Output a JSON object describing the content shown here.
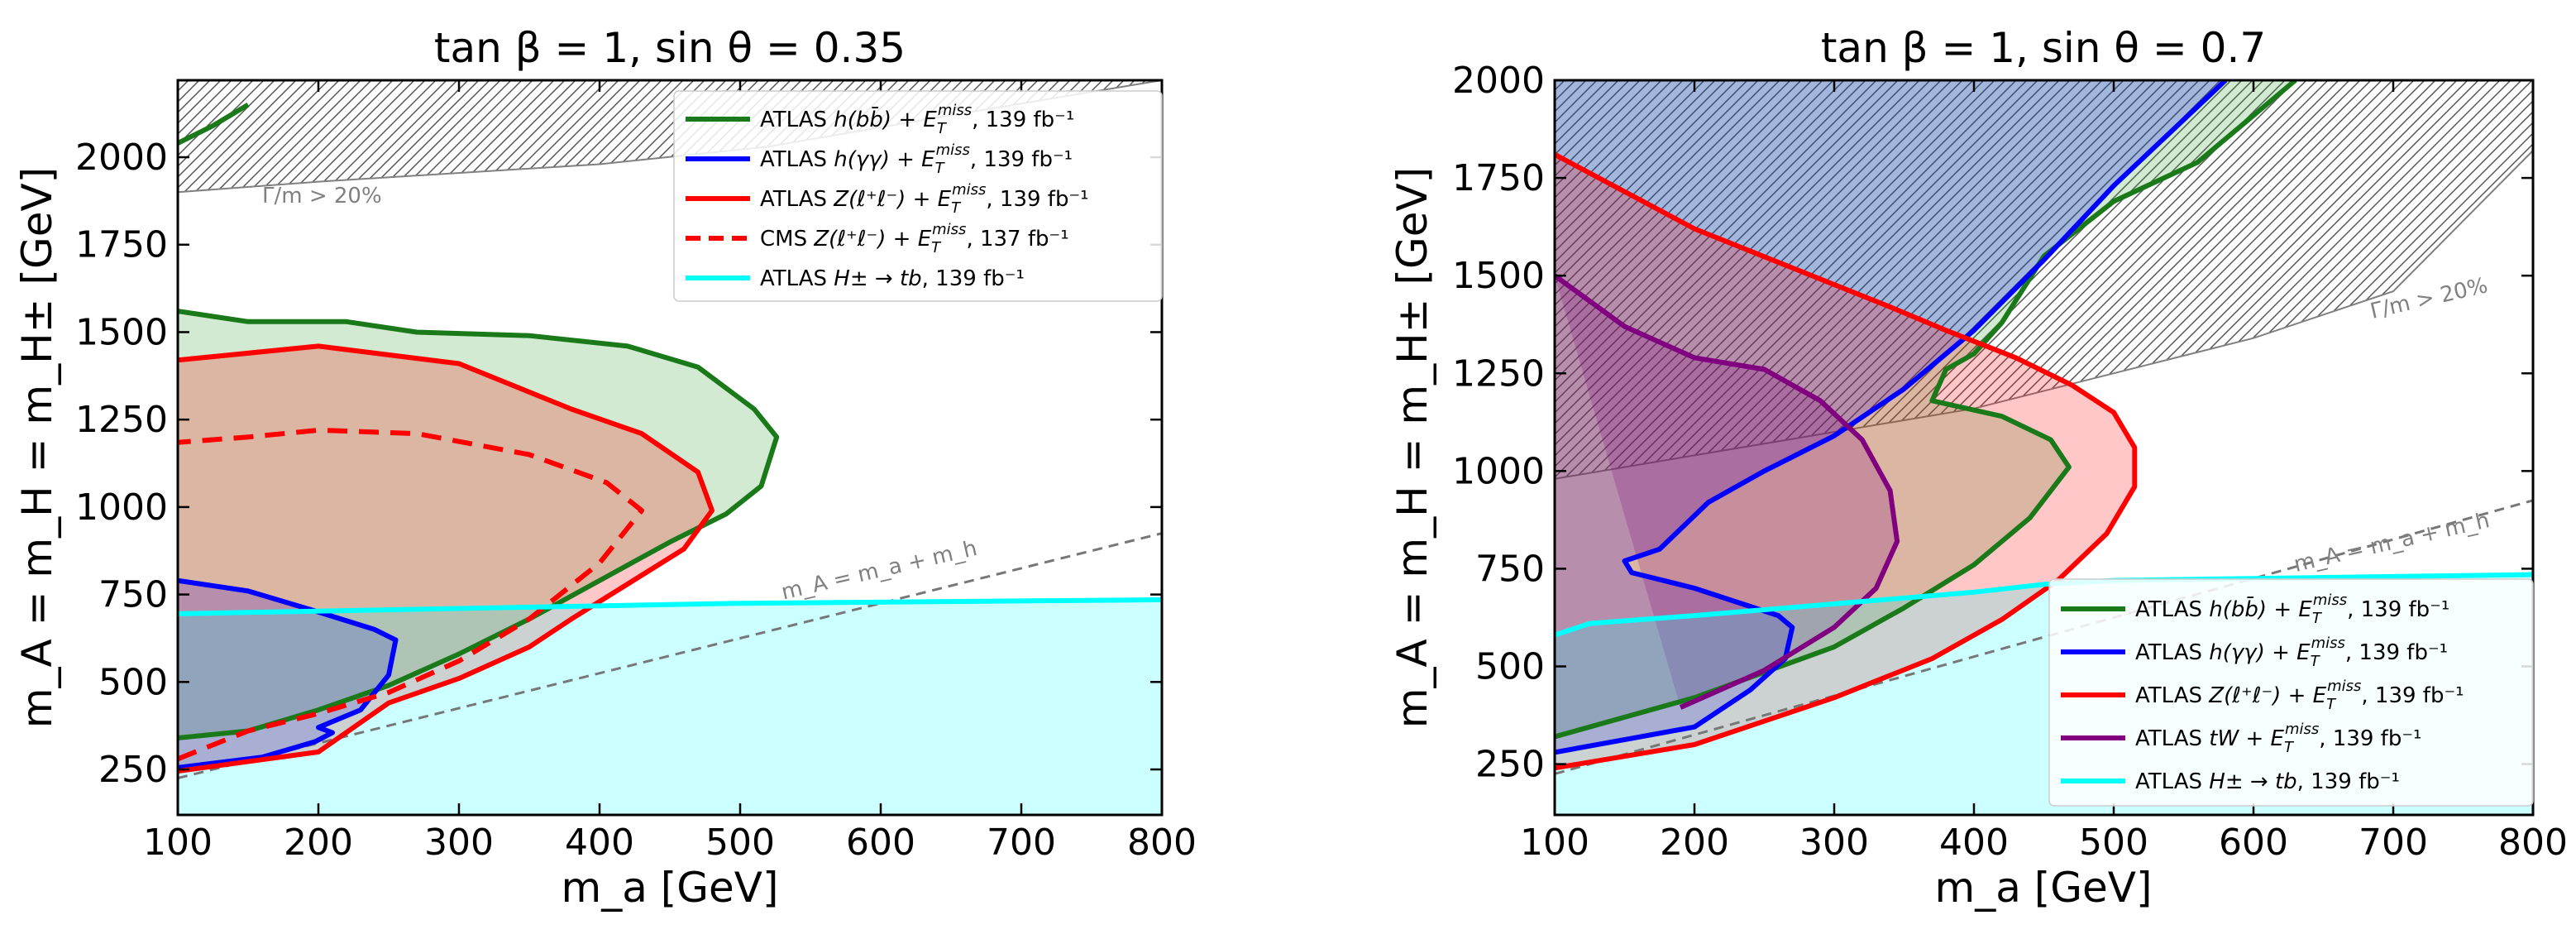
{
  "chart_data": [
    {
      "type": "area",
      "title": "tan β = 1, sin θ = 0.35",
      "xlabel": "m_a [GeV]",
      "ylabel": "m_A = m_H = m_H± [GeV]",
      "xlim": [
        100,
        800
      ],
      "ylim": [
        120,
        2220
      ],
      "xticks": [
        100,
        200,
        300,
        400,
        500,
        600,
        700,
        800
      ],
      "yticks": [
        250,
        500,
        750,
        1000,
        1250,
        1500,
        1750,
        2000
      ],
      "xtick_labels": [
        "100",
        "200",
        "300",
        "400",
        "500",
        "600",
        "700",
        "800"
      ],
      "ytick_labels": [
        "250",
        "500",
        "750",
        "1000",
        "1250",
        "1500",
        "1750",
        "2000"
      ],
      "legend_position": "top-right",
      "hatch": {
        "label": "Γ/m > 20%",
        "lower_edge": [
          [
            100,
            1900
          ],
          [
            200,
            1930
          ],
          [
            400,
            1980
          ],
          [
            520,
            2030
          ],
          [
            650,
            2120
          ],
          [
            800,
            2220
          ]
        ]
      },
      "line_annotation": {
        "label": "m_A = m_a + m_h",
        "points": [
          [
            100,
            225
          ],
          [
            800,
            925
          ]
        ]
      },
      "series": [
        {
          "name": "ATLAS h(bb̄) + E_T^miss, 139 fb⁻¹",
          "legend_main": "ATLAS ",
          "legend_math": "h(bb̄) + E",
          "legend_sub": "T",
          "legend_sup": "miss",
          "legend_tail": ", 139 fb⁻¹",
          "color": "#1a7a1a",
          "fill": "#2ca02c",
          "fill_opacity": 0.22,
          "dashed": false,
          "points": [
            [
              100,
              340
            ],
            [
              150,
              360
            ],
            [
              200,
              420
            ],
            [
              250,
              490
            ],
            [
              300,
              580
            ],
            [
              350,
              680
            ],
            [
              400,
              790
            ],
            [
              450,
              900
            ],
            [
              490,
              980
            ],
            [
              515,
              1060
            ],
            [
              526,
              1200
            ],
            [
              510,
              1280
            ],
            [
              470,
              1400
            ],
            [
              420,
              1460
            ],
            [
              350,
              1490
            ],
            [
              270,
              1500
            ],
            [
              220,
              1530
            ],
            [
              150,
              1530
            ],
            [
              100,
              1560
            ]
          ],
          "extra_points": [
            [
              100,
              2040
            ],
            [
              125,
              2090
            ],
            [
              150,
              2150
            ]
          ]
        },
        {
          "name": "ATLAS h(γγ) + E_T^miss, 139 fb⁻¹",
          "legend_main": "ATLAS ",
          "legend_math": "h(γγ) + E",
          "legend_sub": "T",
          "legend_sup": "miss",
          "legend_tail": ", 139 fb⁻¹",
          "color": "#0000ff",
          "fill": "#0000ff",
          "fill_opacity": 0.22,
          "dashed": false,
          "points": [
            [
              100,
              255
            ],
            [
              160,
              285
            ],
            [
              198,
              330
            ],
            [
              210,
              355
            ],
            [
              200,
              370
            ],
            [
              230,
              420
            ],
            [
              250,
              520
            ],
            [
              255,
              620
            ],
            [
              240,
              650
            ],
            [
              200,
              700
            ],
            [
              150,
              760
            ],
            [
              100,
              790
            ]
          ]
        },
        {
          "name": "ATLAS Z(ℓ⁺ℓ⁻) + E_T^miss, 139 fb⁻¹",
          "legend_main": "ATLAS ",
          "legend_math": "Z(ℓ⁺ℓ⁻) + E",
          "legend_sub": "T",
          "legend_sup": "miss",
          "legend_tail": ", 139 fb⁻¹",
          "color": "#ff0000",
          "fill": "#ff0000",
          "fill_opacity": 0.22,
          "dashed": false,
          "points": [
            [
              100,
              245
            ],
            [
              200,
              300
            ],
            [
              250,
              440
            ],
            [
              300,
              510
            ],
            [
              350,
              600
            ],
            [
              380,
              680
            ],
            [
              420,
              780
            ],
            [
              460,
              880
            ],
            [
              480,
              990
            ],
            [
              470,
              1100
            ],
            [
              430,
              1210
            ],
            [
              380,
              1280
            ],
            [
              300,
              1410
            ],
            [
              200,
              1460
            ],
            [
              100,
              1420
            ]
          ]
        },
        {
          "name": "CMS Z(ℓ⁺ℓ⁻) + E_T^miss, 137 fb⁻¹",
          "legend_main": "CMS ",
          "legend_math": "Z(ℓ⁺ℓ⁻) + E",
          "legend_sub": "T",
          "legend_sup": "miss",
          "legend_tail": ", 137 fb⁻¹",
          "color": "#ff0000",
          "fill": "#ff0000",
          "fill_opacity": 0.0,
          "dashed": true,
          "points": [
            [
              100,
              280
            ],
            [
              150,
              360
            ],
            [
              200,
              410
            ],
            [
              250,
              470
            ],
            [
              300,
              560
            ],
            [
              350,
              680
            ],
            [
              400,
              840
            ],
            [
              430,
              990
            ],
            [
              405,
              1070
            ],
            [
              350,
              1150
            ],
            [
              270,
              1210
            ],
            [
              200,
              1220
            ],
            [
              150,
              1200
            ],
            [
              100,
              1185
            ]
          ]
        },
        {
          "name": "ATLAS H± → tb, 139 fb⁻¹",
          "legend_main": "ATLAS ",
          "legend_math": "H± → tb",
          "legend_sub": "",
          "legend_sup": "",
          "legend_tail": ", 139 fb⁻¹",
          "color": "#00ffff",
          "fill": "#00ffff",
          "fill_opacity": 0.2,
          "dashed": false,
          "points": [
            [
              100,
              695
            ],
            [
              300,
              710
            ],
            [
              500,
              725
            ],
            [
              650,
              730
            ],
            [
              800,
              735
            ]
          ]
        }
      ]
    },
    {
      "type": "area",
      "title": "tan β = 1, sin θ = 0.7",
      "xlabel": "m_a [GeV]",
      "ylabel": "m_A = m_H = m_H± [GeV]",
      "xlim": [
        100,
        800
      ],
      "ylim": [
        120,
        2000
      ],
      "xticks": [
        100,
        200,
        300,
        400,
        500,
        600,
        700,
        800
      ],
      "yticks": [
        250,
        500,
        750,
        1000,
        1250,
        1500,
        1750,
        2000
      ],
      "xtick_labels": [
        "100",
        "200",
        "300",
        "400",
        "500",
        "600",
        "700",
        "800"
      ],
      "ytick_labels": [
        "250",
        "500",
        "750",
        "1000",
        "1250",
        "1500",
        "1750",
        "2000"
      ],
      "legend_position": "bottom-right",
      "hatch": {
        "label": "Γ/m > 20%",
        "lower_edge": [
          [
            100,
            980
          ],
          [
            200,
            1040
          ],
          [
            400,
            1160
          ],
          [
            600,
            1340
          ],
          [
            700,
            1460
          ],
          [
            800,
            1820
          ]
        ]
      },
      "line_annotation": {
        "label": "m_A = m_a + m_h",
        "points": [
          [
            100,
            225
          ],
          [
            800,
            925
          ]
        ]
      },
      "series": [
        {
          "name": "ATLAS h(bb̄) + E_T^miss, 139 fb⁻¹",
          "legend_main": "ATLAS ",
          "legend_math": "h(bb̄) + E",
          "legend_sub": "T",
          "legend_sup": "miss",
          "legend_tail": ", 139 fb⁻¹",
          "color": "#1a7a1a",
          "fill": "#2ca02c",
          "fill_opacity": 0.22,
          "dashed": false,
          "points": [
            [
              100,
              320
            ],
            [
              200,
              420
            ],
            [
              300,
              550
            ],
            [
              350,
              650
            ],
            [
              400,
              760
            ],
            [
              440,
              880
            ],
            [
              468,
              1010
            ],
            [
              455,
              1080
            ],
            [
              420,
              1140
            ],
            [
              370,
              1180
            ],
            [
              380,
              1260
            ],
            [
              400,
              1300
            ],
            [
              420,
              1380
            ],
            [
              450,
              1550
            ],
            [
              500,
              1690
            ],
            [
              560,
              1790
            ],
            [
              630,
              2000
            ]
          ]
        },
        {
          "name": "ATLAS h(γγ) + E_T^miss, 139 fb⁻¹",
          "legend_main": "ATLAS ",
          "legend_math": "h(γγ) + E",
          "legend_sub": "T",
          "legend_sup": "miss",
          "legend_tail": ", 139 fb⁻¹",
          "color": "#0000ff",
          "fill": "#0000ff",
          "fill_opacity": 0.22,
          "dashed": false,
          "points": [
            [
              100,
              280
            ],
            [
              200,
              345
            ],
            [
              240,
              440
            ],
            [
              265,
              520
            ],
            [
              270,
              600
            ],
            [
              260,
              630
            ],
            [
              200,
              700
            ],
            [
              155,
              740
            ],
            [
              150,
              770
            ],
            [
              175,
              800
            ],
            [
              210,
              920
            ],
            [
              250,
              1000
            ],
            [
              300,
              1090
            ],
            [
              350,
              1210
            ],
            [
              400,
              1360
            ],
            [
              450,
              1540
            ],
            [
              500,
              1730
            ],
            [
              580,
              2000
            ]
          ]
        },
        {
          "name": "ATLAS Z(ℓ⁺ℓ⁻) + E_T^miss, 139 fb⁻¹",
          "legend_main": "ATLAS ",
          "legend_math": "Z(ℓ⁺ℓ⁻) + E",
          "legend_sub": "T",
          "legend_sup": "miss",
          "legend_tail": ", 139 fb⁻¹",
          "color": "#ff0000",
          "fill": "#ff0000",
          "fill_opacity": 0.22,
          "dashed": false,
          "points": [
            [
              100,
              240
            ],
            [
              200,
              300
            ],
            [
              300,
              420
            ],
            [
              370,
              520
            ],
            [
              420,
              620
            ],
            [
              460,
              720
            ],
            [
              495,
              840
            ],
            [
              515,
              960
            ],
            [
              515,
              1060
            ],
            [
              500,
              1150
            ],
            [
              470,
              1220
            ],
            [
              430,
              1290
            ],
            [
              380,
              1360
            ],
            [
              340,
              1420
            ],
            [
              200,
              1620
            ],
            [
              100,
              1810
            ]
          ]
        },
        {
          "name": "ATLAS tW + E_T^miss, 139 fb⁻¹",
          "legend_main": "ATLAS ",
          "legend_math": "tW + E",
          "legend_sub": "T",
          "legend_sup": "miss",
          "legend_tail": ", 139 fb⁻¹",
          "color": "#800080",
          "fill": "#800080",
          "fill_opacity": 0.22,
          "dashed": false,
          "points": [
            [
              190,
              395
            ],
            [
              250,
              490
            ],
            [
              300,
              600
            ],
            [
              330,
              700
            ],
            [
              345,
              820
            ],
            [
              340,
              950
            ],
            [
              320,
              1080
            ],
            [
              290,
              1180
            ],
            [
              250,
              1260
            ],
            [
              200,
              1290
            ],
            [
              150,
              1370
            ],
            [
              100,
              1500
            ]
          ]
        },
        {
          "name": "ATLAS H± → tb, 139 fb⁻¹",
          "legend_main": "ATLAS ",
          "legend_math": "H± → tb",
          "legend_sub": "",
          "legend_sup": "",
          "legend_tail": ", 139 fb⁻¹",
          "color": "#00ffff",
          "fill": "#00ffff",
          "fill_opacity": 0.2,
          "dashed": false,
          "points": [
            [
              100,
              580
            ],
            [
              125,
              610
            ],
            [
              200,
              630
            ],
            [
              300,
              660
            ],
            [
              400,
              690
            ],
            [
              450,
              710
            ],
            [
              500,
              720
            ],
            [
              600,
              725
            ],
            [
              800,
              735
            ]
          ]
        }
      ]
    }
  ]
}
